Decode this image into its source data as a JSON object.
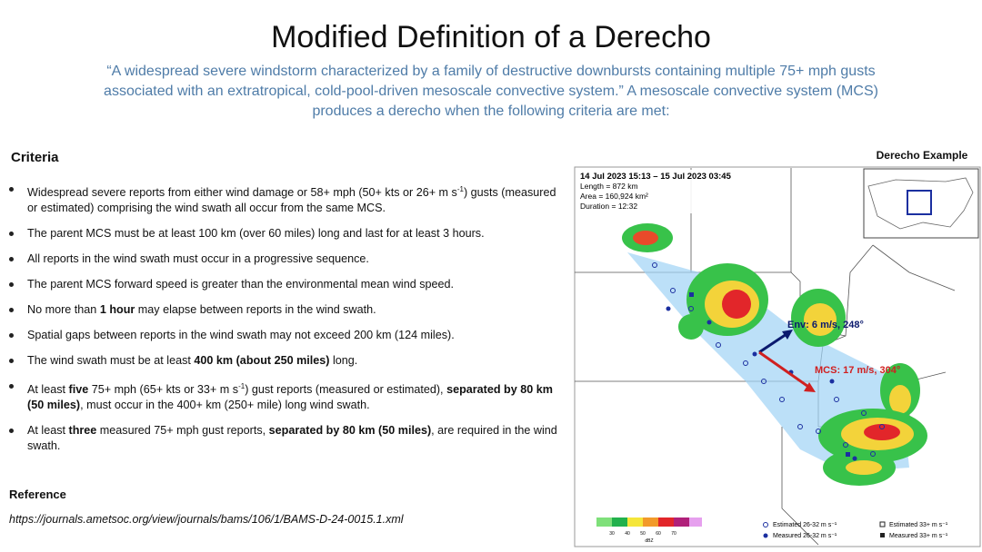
{
  "title": "Modified Definition of a Derecho",
  "quote": "“A widespread severe windstorm characterized by a family of destructive downbursts containing multiple 75+ mph gusts associated with an extratropical, cold-pool-driven mesoscale convective system.” A mesoscale convective system (MCS) produces a derecho when the following criteria are met:",
  "criteria": {
    "heading": "Criteria",
    "items": [
      [
        {
          "text": "Widespread severe reports from either wind damage or 58+ mph (50+ kts or 26+ m s"
        },
        {
          "text": "-1",
          "style": "sup"
        },
        {
          "text": ") gusts (measured or estimated) comprising the wind swath all occur from the same MCS."
        }
      ],
      [
        {
          "text": "The parent MCS must be at least 100 km (over 60 miles) long and last for at least 3 hours."
        }
      ],
      [
        {
          "text": "All reports in the wind swath must occur in a progressive sequence."
        }
      ],
      [
        {
          "text": "The parent MCS forward speed is greater than the environmental mean wind speed."
        }
      ],
      [
        {
          "text": "No more than "
        },
        {
          "text": "1 hour",
          "style": "bold"
        },
        {
          "text": " may elapse between reports in the wind swath."
        }
      ],
      [
        {
          "text": "Spatial gaps between reports in the wind swath may not exceed 200 km (124 miles)."
        }
      ],
      [
        {
          "text": "The wind swath must be at least "
        },
        {
          "text": "400 km (about 250 miles)",
          "style": "bold"
        },
        {
          "text": " long."
        }
      ],
      [
        {
          "text": "At least "
        },
        {
          "text": "five",
          "style": "bold"
        },
        {
          "text": " 75+ mph (65+ kts or 33+ m s"
        },
        {
          "text": "-1",
          "style": "sup"
        },
        {
          "text": ") gust reports (measured or estimated), "
        },
        {
          "text": "separated by 80 km (50 miles)",
          "style": "bold"
        },
        {
          "text": ", must occur in the 400+ km (250+ mile) long wind swath."
        }
      ],
      [
        {
          "text": "At least "
        },
        {
          "text": "three",
          "style": "bold"
        },
        {
          "text": " measured 75+ mph gust reports, "
        },
        {
          "text": "separated by 80 km (50 miles)",
          "style": "bold"
        },
        {
          "text": ", are required in the wind swath."
        }
      ]
    ]
  },
  "reference": {
    "heading": "Reference",
    "url": "https://journals.ametsoc.org/view/journals/bams/106/1/BAMS-D-24-0015.1.xml"
  },
  "example": {
    "heading": "Derecho Example",
    "period": "14 Jul 2023 15:13 – 15 Jul 2023 03:45",
    "length": "Length = 872 km",
    "area": "Area = 160,924 km²",
    "duration": "Duration = 12:32",
    "env": "Env: 6 m/s, 248°",
    "mcs": "MCS: 17 m/s, 304°",
    "colorbar_ticks": [
      "30",
      "40",
      "50",
      "60",
      "70"
    ],
    "colorbar_unit": "dBZ",
    "legend": [
      "Estimated 26-32 m s⁻¹",
      "Measured 26-32 m s⁻¹",
      "Estimated 33+ m s⁻¹",
      "Measured 33+ m s⁻¹"
    ]
  }
}
